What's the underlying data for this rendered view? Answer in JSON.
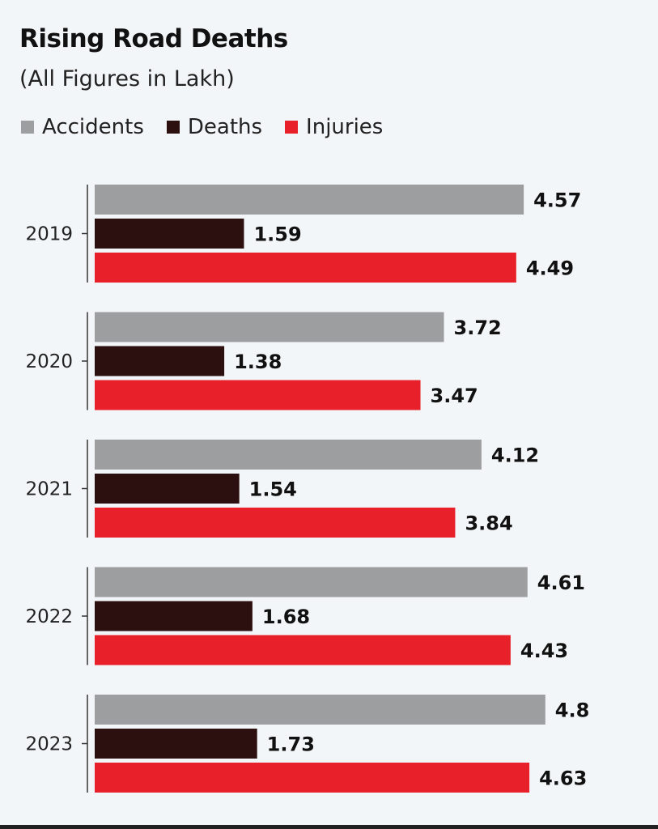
{
  "chart_data": {
    "type": "bar",
    "orientation": "horizontal",
    "title": "Rising Road Deaths",
    "subtitle": "(All Figures in Lakh)",
    "categories": [
      "2019",
      "2020",
      "2021",
      "2022",
      "2023"
    ],
    "series": [
      {
        "name": "Accidents",
        "color": "#9d9ea0",
        "values": [
          4.57,
          3.72,
          4.12,
          4.61,
          4.8
        ],
        "labels": [
          "4.57",
          "3.72",
          "4.12",
          "4.61",
          "4.8"
        ]
      },
      {
        "name": "Deaths",
        "color": "#2c0f0f",
        "values": [
          1.59,
          1.38,
          1.54,
          1.68,
          1.73
        ],
        "labels": [
          "1.59",
          "1.38",
          "1.54",
          "1.68",
          "1.73"
        ]
      },
      {
        "name": "Injuries",
        "color": "#e8202a",
        "values": [
          4.49,
          3.47,
          3.84,
          4.43,
          4.63
        ],
        "labels": [
          "4.49",
          "3.47",
          "3.84",
          "4.43",
          "4.63"
        ]
      }
    ],
    "xlim": [
      0,
      5
    ],
    "grid": false,
    "legend": "top-left"
  }
}
